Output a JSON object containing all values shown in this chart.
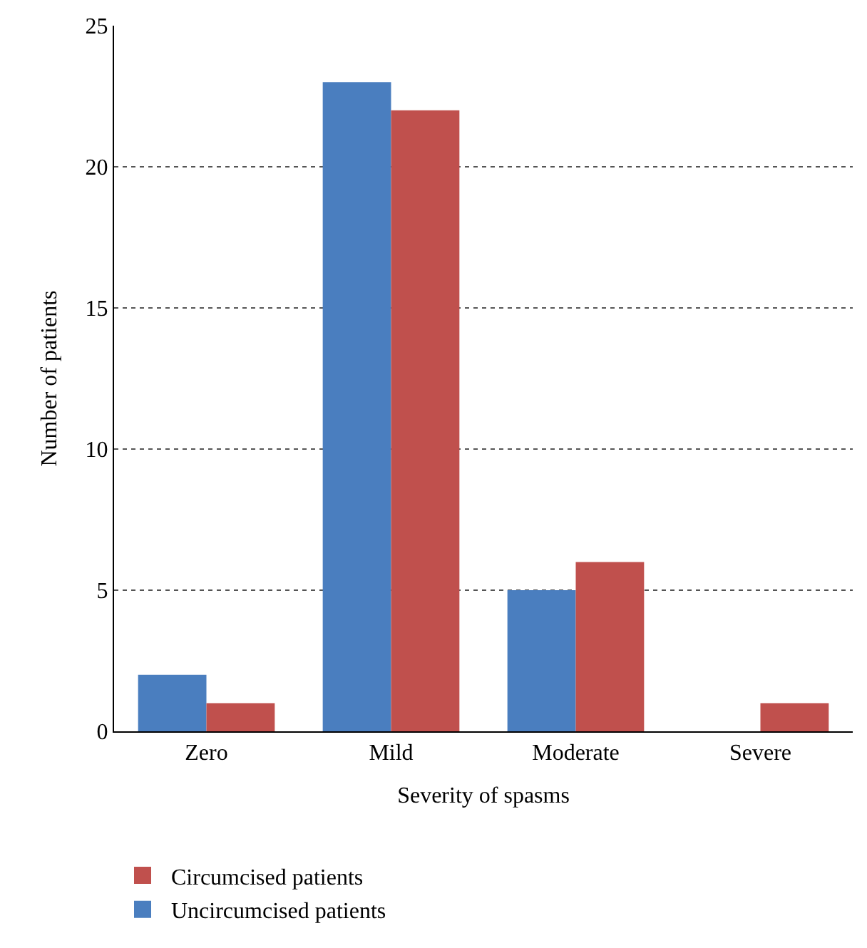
{
  "chart_data": {
    "type": "bar",
    "xlabel": "Severity of spasms",
    "ylabel": "Number of patients",
    "categories": [
      "Zero",
      "Mild",
      "Moderate",
      "Severe"
    ],
    "series": [
      {
        "name": "Uncircumcised patients",
        "color": "#4a7ebf",
        "values": [
          2,
          23,
          5,
          0
        ]
      },
      {
        "name": "Circumcised patients",
        "color": "#c0504d",
        "values": [
          1,
          22,
          6,
          1
        ]
      }
    ],
    "ylim": [
      0,
      25
    ],
    "yticks": [
      0,
      5,
      10,
      15,
      20,
      25
    ],
    "grid": "y",
    "legend": "bottom"
  }
}
